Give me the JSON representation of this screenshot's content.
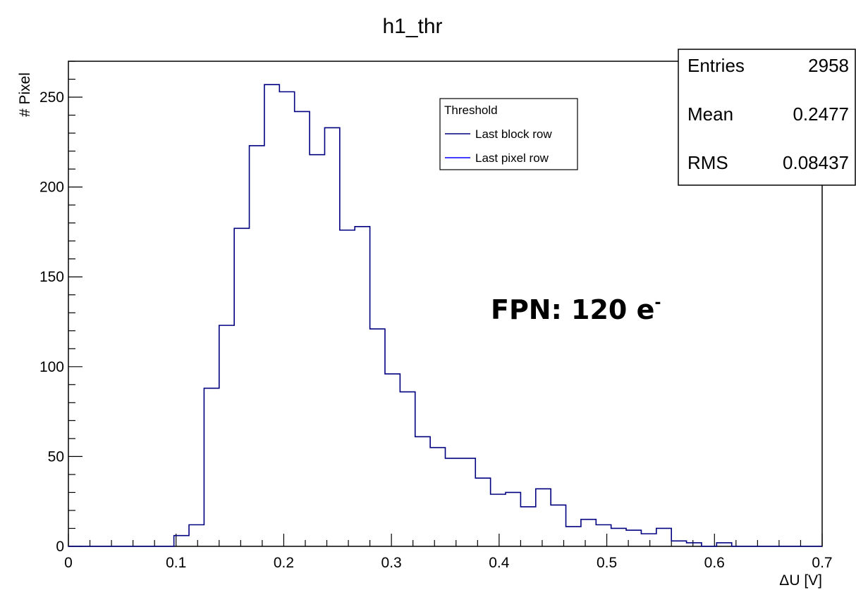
{
  "chart_data": {
    "type": "histogram",
    "title": "h1_thr",
    "xlabel": "ΔU [V]",
    "ylabel": "# Pixel",
    "xlim": [
      0,
      0.7
    ],
    "ylim": [
      0,
      270
    ],
    "x_ticks": [
      0,
      0.1,
      0.2,
      0.3,
      0.4,
      0.5,
      0.6,
      0.7
    ],
    "x_tick_labels": [
      "0",
      "0.1",
      "0.2",
      "0.3",
      "0.4",
      "0.5",
      "0.6",
      "0.7"
    ],
    "y_ticks": [
      0,
      50,
      100,
      150,
      200,
      250
    ],
    "y_tick_labels": [
      "0",
      "50",
      "100",
      "150",
      "200",
      "250"
    ],
    "bin_width": 0.014,
    "bins_start": [
      0.098,
      0.112,
      0.126,
      0.14,
      0.154,
      0.168,
      0.182,
      0.196,
      0.21,
      0.224,
      0.238,
      0.252,
      0.266,
      0.28,
      0.294,
      0.308,
      0.322,
      0.336,
      0.35,
      0.364,
      0.378,
      0.392,
      0.406,
      0.42,
      0.434,
      0.448,
      0.462,
      0.476,
      0.49,
      0.504,
      0.518,
      0.532,
      0.546,
      0.56,
      0.574,
      0.588,
      0.602,
      0.616
    ],
    "counts": [
      6,
      12,
      88,
      123,
      177,
      223,
      257,
      253,
      242,
      218,
      233,
      176,
      178,
      121,
      96,
      86,
      61,
      55,
      49,
      49,
      38,
      29,
      30,
      22,
      32,
      23,
      11,
      15,
      12,
      10,
      9,
      7,
      10,
      3,
      2,
      0,
      2,
      0
    ],
    "grid": false,
    "line_color": "#000080",
    "legend": {
      "title": "Threshold",
      "placement": "top-center",
      "entries": [
        {
          "label": "Last block row",
          "color": "#000080"
        },
        {
          "label": "Last pixel row",
          "color": "#0000ff"
        }
      ]
    },
    "stats": [
      {
        "label": "Entries",
        "value": "2958"
      },
      {
        "label": "Mean",
        "value": "0.2477"
      },
      {
        "label": "RMS",
        "value": "0.08437"
      }
    ],
    "annotation": {
      "text": "FPN: 120 e",
      "superscript": "-"
    }
  }
}
